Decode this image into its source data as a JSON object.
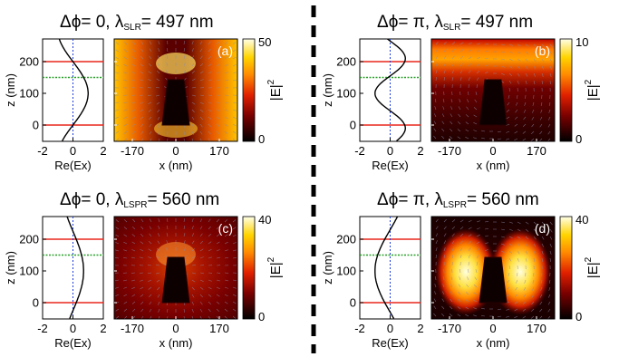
{
  "panels": [
    {
      "id": "a",
      "title": {
        "prefix": "Δϕ= 0, λ",
        "sub": "SLR",
        "suffix": "= 497 nm"
      },
      "letter": "(a)",
      "colorbar": {
        "max": "50",
        "min": "0"
      },
      "map": "edges",
      "profile": {
        "amp": 1.0,
        "offset": 0.0,
        "period": 400
      }
    },
    {
      "id": "b",
      "title": {
        "prefix": "Δϕ= π, λ",
        "sub": "SLR",
        "suffix": "= 497 nm"
      },
      "letter": "(b)",
      "colorbar": {
        "max": "10",
        "min": "0"
      },
      "map": "band",
      "profile": {
        "amp": 1.0,
        "offset": 0.0,
        "period": 220
      }
    },
    {
      "id": "c",
      "title": {
        "prefix": "Δϕ= 0, λ",
        "sub": "LSPR",
        "suffix": "= 560 nm"
      },
      "letter": "(c)",
      "colorbar": {
        "max": "40",
        "min": "0"
      },
      "map": "weak",
      "profile": {
        "amp": 0.7,
        "offset": 0.0,
        "period": 500
      }
    },
    {
      "id": "d",
      "title": {
        "prefix": "Δϕ= π, λ",
        "sub": "LSPR",
        "suffix": "= 560 nm"
      },
      "letter": "(d)",
      "colorbar": {
        "max": "40",
        "min": "0"
      },
      "map": "lobes",
      "profile": {
        "amp": 1.0,
        "offset": 0.0,
        "period": 520
      }
    }
  ],
  "axes": {
    "profile_xlabel": "Re(Ex)",
    "profile_xticks": [
      "-2",
      "0",
      "2"
    ],
    "z_label": "z (nm)",
    "z_ticks": [
      "200",
      "100",
      "0"
    ],
    "map_xlabel": "x (nm)",
    "map_xticks": [
      "-170",
      "0",
      "170"
    ],
    "colorbar_label": "|E|",
    "colorbar_exp": "2"
  },
  "colors": {
    "profile_curve": "#000000",
    "red_lines": "#e8261c",
    "green_line": "#2ca02c",
    "blue_axis": "#1f3fd8",
    "arrows": "#8a8aa6"
  },
  "z_markers": {
    "red": [
      0,
      200
    ],
    "green": [
      150
    ]
  }
}
